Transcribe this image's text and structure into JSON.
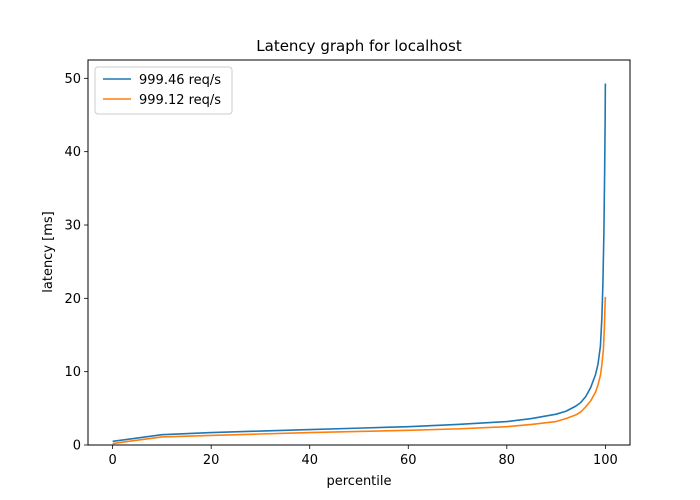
{
  "chart_data": {
    "type": "line",
    "title": "Latency graph for localhost",
    "xlabel": "percentile",
    "ylabel": "latency [ms]",
    "xlim": [
      -5,
      105
    ],
    "ylim": [
      0,
      52.5
    ],
    "xticks": [
      0,
      20,
      40,
      60,
      80,
      100
    ],
    "yticks": [
      0,
      10,
      20,
      30,
      40,
      50
    ],
    "grid": false,
    "legend_position": "top-left",
    "series": [
      {
        "name": "999.46 req/s",
        "color": "#1f77b4",
        "x": [
          0,
          10,
          20,
          30,
          40,
          50,
          60,
          70,
          80,
          85,
          90,
          92,
          94,
          95,
          96,
          97,
          98,
          98.5,
          99,
          99.3,
          99.5,
          99.7,
          99.85,
          99.95,
          100
        ],
        "y": [
          0.5,
          1.4,
          1.7,
          1.9,
          2.1,
          2.3,
          2.5,
          2.8,
          3.2,
          3.6,
          4.2,
          4.6,
          5.3,
          5.8,
          6.6,
          7.8,
          9.6,
          11.0,
          13.5,
          17.5,
          22.0,
          29.0,
          37.0,
          44.0,
          49.3
        ]
      },
      {
        "name": "999.12 req/s",
        "color": "#ff7f0e",
        "x": [
          0,
          10,
          20,
          30,
          40,
          50,
          60,
          70,
          80,
          85,
          90,
          92,
          94,
          95,
          96,
          97,
          98,
          98.5,
          99,
          99.3,
          99.6,
          99.8,
          99.9,
          100
        ],
        "y": [
          0.2,
          1.1,
          1.3,
          1.5,
          1.7,
          1.85,
          2.0,
          2.2,
          2.5,
          2.8,
          3.2,
          3.6,
          4.1,
          4.5,
          5.2,
          6.0,
          7.2,
          8.2,
          9.5,
          11.0,
          13.0,
          16.0,
          18.5,
          20.2
        ]
      }
    ]
  }
}
